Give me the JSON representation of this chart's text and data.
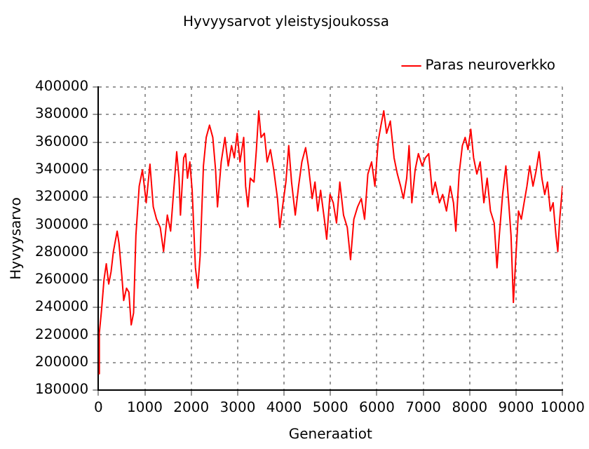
{
  "chart_data": {
    "type": "line",
    "title": "Hyvyysarvot yleistysjoukossa",
    "xlabel": "Generaatiot",
    "ylabel": "Hyvyysarvo",
    "xlim": [
      0,
      10000
    ],
    "xticks": [
      0,
      1000,
      2000,
      3000,
      4000,
      5000,
      6000,
      7000,
      8000,
      9000,
      10000
    ],
    "ylim": [
      180000,
      400000
    ],
    "yticks": [
      180000,
      200000,
      220000,
      240000,
      260000,
      280000,
      300000,
      320000,
      340000,
      360000,
      380000,
      400000
    ],
    "grid": true,
    "legend": "top right",
    "marker": "none",
    "line_style": "solid",
    "x": [
      0,
      20,
      70,
      120,
      170,
      222,
      273,
      323,
      404,
      444,
      505,
      545,
      606,
      657,
      707,
      758,
      808,
      879,
      949,
      1030,
      1111,
      1182,
      1253,
      1333,
      1404,
      1485,
      1556,
      1616,
      1687,
      1737,
      1768,
      1838,
      1879,
      1919,
      1970,
      2020,
      2091,
      2141,
      2192,
      2263,
      2323,
      2394,
      2465,
      2525,
      2566,
      2646,
      2727,
      2798,
      2869,
      2929,
      2990,
      3051,
      3131,
      3172,
      3222,
      3273,
      3353,
      3404,
      3455,
      3505,
      3576,
      3636,
      3707,
      3778,
      3859,
      3909,
      3980,
      4040,
      4101,
      4162,
      4242,
      4313,
      4384,
      4465,
      4525,
      4606,
      4667,
      4727,
      4788,
      4869,
      4919,
      4990,
      5060,
      5131,
      5202,
      5282,
      5363,
      5433,
      5504,
      5585,
      5665,
      5736,
      5806,
      5887,
      5958,
      6028,
      6089,
      6149,
      6210,
      6290,
      6371,
      6442,
      6512,
      6573,
      6643,
      6694,
      6754,
      6825,
      6895,
      6976,
      7046,
      7117,
      7198,
      7258,
      7349,
      7419,
      7500,
      7581,
      7651,
      7702,
      7772,
      7843,
      7903,
      7964,
      8024,
      8085,
      8155,
      8226,
      8306,
      8377,
      8448,
      8528,
      8589,
      8639,
      8710,
      8780,
      8841,
      8891,
      8942,
      8992,
      9052,
      9113,
      9173,
      9234,
      9294,
      9365,
      9435,
      9496,
      9556,
      9617,
      9677,
      9738,
      9798,
      9859,
      9899,
      9940,
      10000
    ],
    "series": [
      {
        "name": "Paras neuroverkko",
        "color": "#ff0000",
        "values": [
          191800,
          221400,
          239000,
          260000,
          271700,
          257000,
          266000,
          280600,
          295400,
          286500,
          262800,
          245000,
          254000,
          251000,
          227300,
          236000,
          292400,
          328000,
          339800,
          316000,
          344000,
          313000,
          304000,
          298000,
          280600,
          307000,
          295400,
          322000,
          353000,
          333800,
          307000,
          348600,
          351600,
          333800,
          345600,
          325000,
          268800,
          254000,
          277600,
          342700,
          363400,
          372300,
          363400,
          339800,
          313000,
          345600,
          363400,
          342700,
          357500,
          348600,
          366400,
          345600,
          363400,
          328000,
          313000,
          333800,
          331000,
          354500,
          382700,
          363400,
          366400,
          345600,
          354500,
          339800,
          319000,
          298000,
          316000,
          331000,
          357500,
          331000,
          307000,
          328000,
          345600,
          356000,
          342700,
          319000,
          331000,
          310000,
          325000,
          304000,
          289500,
          322000,
          316000,
          301300,
          331000,
          307000,
          298000,
          274700,
          304000,
          313000,
          319000,
          304000,
          336800,
          345600,
          328000,
          360500,
          372300,
          382700,
          366400,
          375300,
          348600,
          336800,
          328000,
          319000,
          333800,
          357500,
          316000,
          339800,
          351600,
          342700,
          348600,
          351600,
          322000,
          331000,
          316000,
          322000,
          310000,
          328000,
          316000,
          295400,
          336800,
          357500,
          363400,
          354500,
          369300,
          348600,
          336800,
          345600,
          316000,
          333800,
          310000,
          301300,
          268800,
          292400,
          322000,
          342700,
          316000,
          292400,
          243600,
          274700,
          310000,
          304000,
          316000,
          328000,
          342700,
          328000,
          339800,
          353000,
          333800,
          322000,
          331000,
          310000,
          316000,
          292400,
          280600,
          304000,
          328000
        ]
      }
    ]
  }
}
